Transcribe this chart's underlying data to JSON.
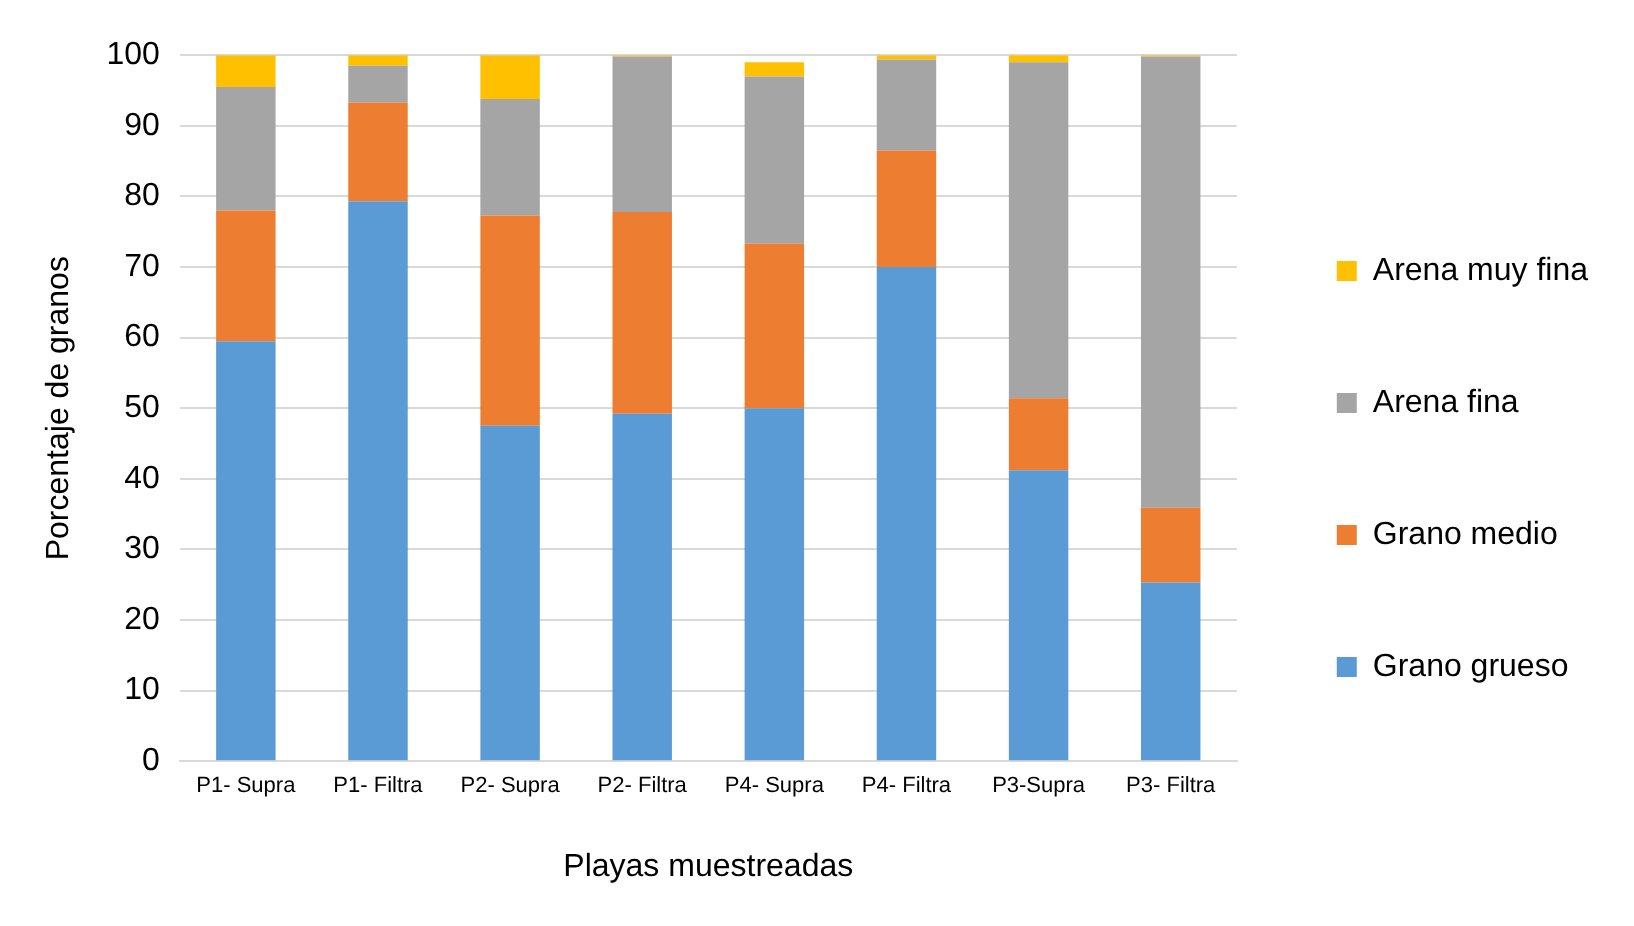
{
  "chart_data": {
    "type": "bar",
    "stacked": true,
    "xlabel": "Playas muestreadas",
    "ylabel": "Porcentaje de granos",
    "categories": [
      "P1- Supra",
      "P1- Filtra",
      "P2- Supra",
      "P2- Filtra",
      "P4- Supra",
      "P4- Filtra",
      "P3-Supra",
      "P3- Filtra"
    ],
    "series": [
      {
        "name": "Grano grueso",
        "color": "#5b9bd5",
        "values": [
          59.5,
          79.3,
          47.5,
          49.2,
          50,
          70,
          41.2,
          25.3
        ]
      },
      {
        "name": "Grano medio",
        "color": "#ed7d31",
        "values": [
          18.5,
          14,
          29.8,
          28.6,
          23.3,
          16.5,
          10.2,
          10.6
        ]
      },
      {
        "name": "Arena fina",
        "color": "#a5a5a5",
        "values": [
          17.5,
          5.2,
          16.5,
          22,
          23.7,
          12.9,
          47.6,
          63.9
        ]
      },
      {
        "name": "Arena muy fina",
        "color": "#ffc000",
        "values": [
          4.5,
          1.5,
          6.2,
          0.2,
          2,
          0.6,
          1,
          0.2
        ]
      }
    ],
    "ylim": [
      0,
      100
    ],
    "yticks": [
      0,
      10,
      20,
      30,
      40,
      50,
      60,
      70,
      80,
      90,
      100
    ],
    "grid": "y",
    "legend": "right"
  }
}
